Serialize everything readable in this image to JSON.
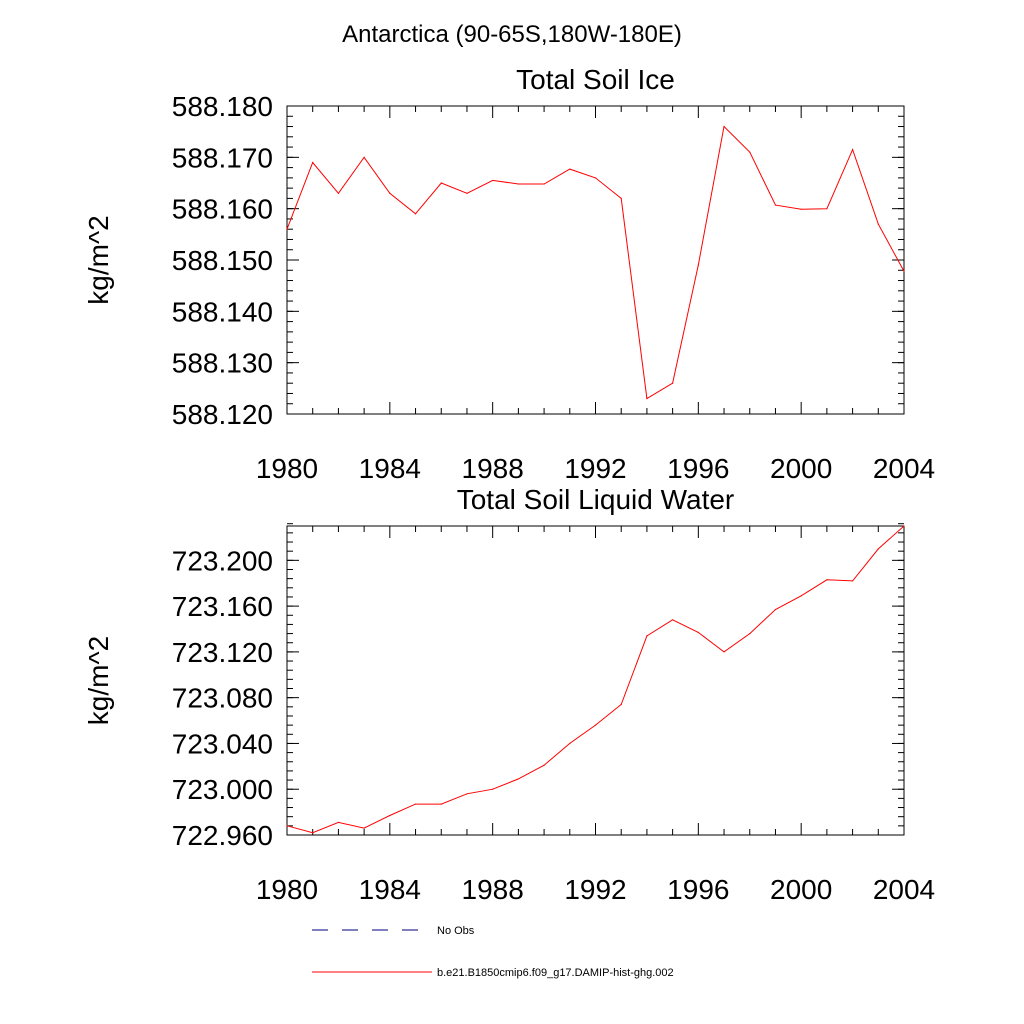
{
  "figure": {
    "suptitle": "Antarctica (90-65S,180W-180E)",
    "line_color": "#ff0000",
    "obs_color": "#000080"
  },
  "legend": {
    "placement": "bottom-left",
    "entries": [
      {
        "label": "No Obs",
        "style": "dashed",
        "color": "#000080"
      },
      {
        "label": "b.e21.B1850cmip6.f09_g17.DAMIP-hist-ghg.002",
        "style": "solid",
        "color": "#ff0000"
      }
    ]
  },
  "chart_data": [
    {
      "type": "line",
      "title": "Total Soil Ice",
      "xlabel": "",
      "ylabel": "kg/m^2",
      "xlim": [
        1980,
        2004
      ],
      "ylim": [
        588.12,
        588.18
      ],
      "xticks": [
        1980,
        1984,
        1988,
        1992,
        1996,
        2000,
        2004
      ],
      "xtick_labels": [
        "1980",
        "1984",
        "1988",
        "1992",
        "1996",
        "2000",
        "2004"
      ],
      "yticks": [
        588.12,
        588.13,
        588.14,
        588.15,
        588.16,
        588.17,
        588.18
      ],
      "ytick_labels": [
        "588.120",
        "588.130",
        "588.140",
        "588.150",
        "588.160",
        "588.170",
        "588.180"
      ],
      "grid": false,
      "series": [
        {
          "name": "b.e21.B1850cmip6.f09_g17.DAMIP-hist-ghg.002",
          "color": "#ff0000",
          "x": [
            1980,
            1981,
            1982,
            1983,
            1984,
            1985,
            1986,
            1987,
            1988,
            1989,
            1990,
            1991,
            1992,
            1993,
            1994,
            1995,
            1996,
            1997,
            1998,
            1999,
            2000,
            2001,
            2002,
            2003,
            2004
          ],
          "y": [
            588.156,
            588.169,
            588.163,
            588.17,
            588.163,
            588.159,
            588.165,
            588.163,
            588.1655,
            588.1648,
            588.1648,
            588.1677,
            588.166,
            588.162,
            588.123,
            588.126,
            588.149,
            588.176,
            588.171,
            588.1607,
            588.1599,
            588.16,
            588.1715,
            588.157,
            588.1478
          ]
        }
      ]
    },
    {
      "type": "line",
      "title": "Total Soil Liquid Water",
      "xlabel": "",
      "ylabel": "kg/m^2",
      "xlim": [
        1980,
        2004
      ],
      "ylim": [
        722.96,
        723.23
      ],
      "xticks": [
        1980,
        1984,
        1988,
        1992,
        1996,
        2000,
        2004
      ],
      "xtick_labels": [
        "1980",
        "1984",
        "1988",
        "1992",
        "1996",
        "2000",
        "2004"
      ],
      "yticks": [
        722.96,
        723.0,
        723.04,
        723.08,
        723.12,
        723.16,
        723.2
      ],
      "ytick_labels": [
        "722.960",
        "723.000",
        "723.040",
        "723.080",
        "723.120",
        "723.160",
        "723.200"
      ],
      "grid": false,
      "series": [
        {
          "name": "b.e21.B1850cmip6.f09_g17.DAMIP-hist-ghg.002",
          "color": "#ff0000",
          "x": [
            1980,
            1981,
            1982,
            1983,
            1984,
            1985,
            1986,
            1987,
            1988,
            1989,
            1990,
            1991,
            1992,
            1993,
            1994,
            1995,
            1996,
            1997,
            1998,
            1999,
            2000,
            2001,
            2002,
            2003,
            2004
          ],
          "y": [
            722.968,
            722.962,
            722.971,
            722.966,
            722.977,
            722.987,
            722.987,
            722.996,
            723.0,
            723.009,
            723.021,
            723.04,
            723.056,
            723.074,
            723.134,
            723.148,
            723.137,
            723.12,
            723.136,
            723.157,
            723.169,
            723.183,
            723.182,
            723.21,
            723.23
          ]
        }
      ]
    }
  ]
}
